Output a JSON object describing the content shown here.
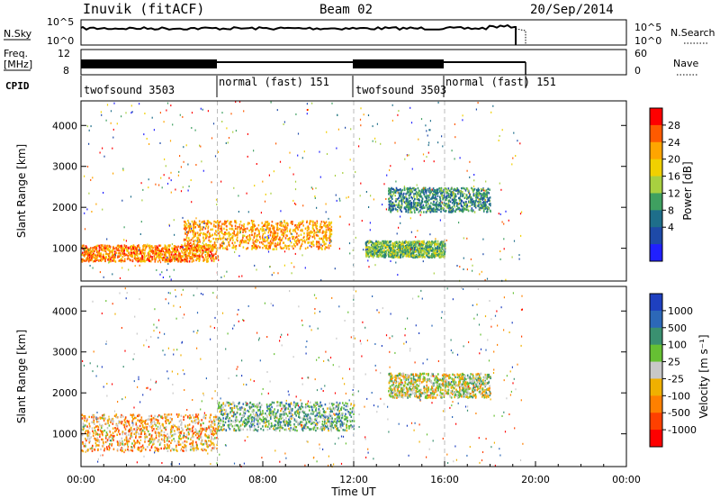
{
  "header": {
    "title": "Inuvik (fitACF)",
    "beam": "Beam 02",
    "date": "20/Sep/2014"
  },
  "panels": {
    "nsky": {
      "left_label": "N.Sky",
      "left_ticks": [
        "10^5",
        "10^0"
      ],
      "right_ticks": [
        "10^5",
        "10^0"
      ],
      "right_label": "N.Search",
      "right_legend": "……"
    },
    "freq": {
      "left_label_1": "Freq.",
      "left_label_2": "[MHz]",
      "left_ticks": [
        "12",
        "8"
      ],
      "right_ticks": [
        "60",
        "0"
      ],
      "right_label": "Nave",
      "right_legend": "…."
    },
    "cpid": {
      "label": "CPID",
      "segments": [
        "twofsound 3503",
        "normal (fast) 151",
        "twofsound 3503",
        "normal (fast) 151"
      ]
    }
  },
  "chart_data": [
    {
      "type": "heatmap",
      "title": "",
      "xlabel": "",
      "ylabel": "Slant Range [km]",
      "ylim": [
        200,
        4600
      ],
      "yticks": [
        "1000",
        "2000",
        "3000",
        "4000"
      ],
      "colorbar": {
        "label": "Power [dB]",
        "ticks": [
          "28",
          "24",
          "20",
          "16",
          "12",
          "8",
          "4"
        ],
        "colors": [
          "#ff0000",
          "#ff5a00",
          "#ffa500",
          "#f0d000",
          "#a8d040",
          "#3fa060",
          "#1e6e8a",
          "#1e4aa8",
          "#2020ff"
        ]
      },
      "cpid_boundaries_hours": [
        6,
        12,
        16
      ],
      "echo_regions": [
        {
          "t_start": 0.0,
          "t_end": 6.0,
          "range_km": [
            700,
            1100
          ],
          "power_db": 26
        },
        {
          "t_start": 4.5,
          "t_end": 11.0,
          "range_km": [
            1000,
            1700
          ],
          "power_db": 24
        },
        {
          "t_start": 12.5,
          "t_end": 16.0,
          "range_km": [
            800,
            1200
          ],
          "power_db": 14
        },
        {
          "t_start": 13.5,
          "t_end": 18.0,
          "range_km": [
            1900,
            2500
          ],
          "power_db": 10
        }
      ]
    },
    {
      "type": "heatmap",
      "title": "",
      "xlabel": "Time UT",
      "ylabel": "Slant Range [km]",
      "ylim": [
        200,
        4600
      ],
      "yticks": [
        "1000",
        "2000",
        "3000",
        "4000"
      ],
      "x_tick_labels": [
        "00:00",
        "04:00",
        "08:00",
        "12:00",
        "16:00",
        "20:00",
        "00:00"
      ],
      "x_range_hours": [
        0,
        24
      ],
      "colorbar": {
        "label": "Velocity [m s⁻¹]",
        "ticks": [
          "1000",
          "500",
          "100",
          "25",
          "-25",
          "-100",
          "-500",
          "-1000"
        ],
        "colors": [
          "#1e40c0",
          "#2c68b8",
          "#3a9070",
          "#66c033",
          "#c8c8c8",
          "#f0b000",
          "#ff8000",
          "#ff4000",
          "#ff0000"
        ]
      },
      "echo_regions": [
        {
          "t_start": 0.0,
          "t_end": 6.0,
          "range_km": [
            600,
            1500
          ],
          "velocity": -300
        },
        {
          "t_start": 6.0,
          "t_end": 12.0,
          "range_km": [
            1100,
            1800
          ],
          "velocity": 300
        },
        {
          "t_start": 13.5,
          "t_end": 18.0,
          "range_km": [
            1900,
            2500
          ],
          "velocity": 0
        }
      ]
    }
  ]
}
